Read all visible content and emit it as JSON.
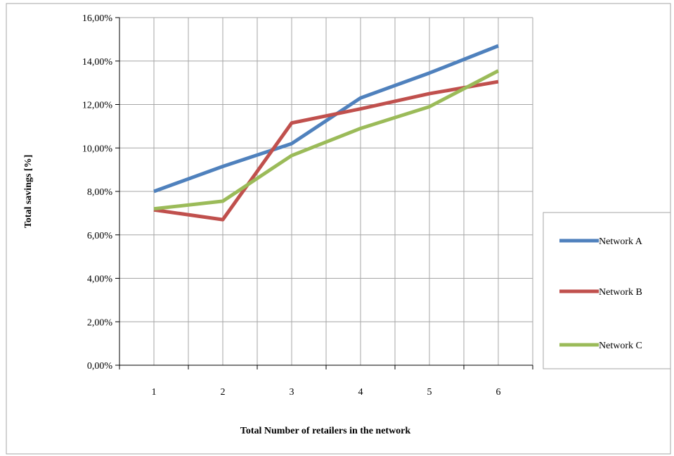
{
  "chart_data": {
    "type": "line",
    "xlabel": "Total Number of retailers in the network",
    "ylabel": "Total savings [%]",
    "categories": [
      "1",
      "2",
      "3",
      "4",
      "5",
      "6"
    ],
    "y_ticks": [
      "0,00%",
      "2,00%",
      "4,00%",
      "6,00%",
      "8,00%",
      "10,00%",
      "12,00%",
      "14,00%",
      "16,00%"
    ],
    "ylim": [
      0,
      16
    ],
    "grid": true,
    "legend_position": "right",
    "series": [
      {
        "name": "Network  A",
        "color": "#4f81bd",
        "values": [
          8.0,
          9.15,
          10.2,
          12.3,
          13.45,
          14.7
        ]
      },
      {
        "name": "Network   B",
        "color": "#c0504d",
        "values": [
          7.15,
          6.7,
          11.15,
          11.8,
          12.5,
          13.05
        ]
      },
      {
        "name": "Network  C",
        "color": "#9bbb59",
        "values": [
          7.2,
          7.55,
          9.65,
          10.9,
          11.9,
          13.55
        ]
      }
    ]
  }
}
